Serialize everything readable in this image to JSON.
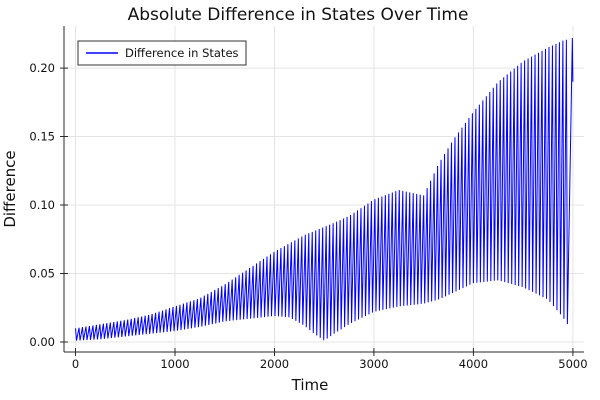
{
  "chart_data": {
    "type": "line",
    "title": "Absolute Difference in States Over Time",
    "xlabel": "Time",
    "ylabel": "Difference",
    "legend": {
      "position": "top-left",
      "entries": [
        {
          "label": "Difference in States",
          "color": "#0000ff"
        }
      ]
    },
    "x_ticks": [
      0,
      1000,
      2000,
      3000,
      4000,
      5000
    ],
    "x_tick_labels": [
      "0",
      "1000",
      "2000",
      "3000",
      "4000",
      "5000"
    ],
    "y_ticks": [
      0.0,
      0.05,
      0.1,
      0.15,
      0.2
    ],
    "y_tick_labels": [
      "0.00",
      "0.05",
      "0.10",
      "0.15",
      "0.20"
    ],
    "xlim": [
      -116,
      5112
    ],
    "ylim": [
      -0.0073,
      0.2307
    ],
    "grid": true,
    "colors": {
      "line": "#0000ff",
      "grid": "#e4e4e4",
      "axis": "#2a2a2a",
      "text": "#111111",
      "background": "#ffffff",
      "legend_border": "#333333",
      "legend_fill": "#ffffff"
    },
    "series": [
      {
        "name": "Difference in States",
        "description": "Rapidly oscillating absolute difference between two states; spikes oscillate between the lower and upper envelopes below",
        "t_range": [
          0,
          5000
        ],
        "oscillation_period": 35,
        "valley_offset": 10,
        "envelope": {
          "t": [
            0,
            250,
            500,
            750,
            1000,
            1250,
            1500,
            1750,
            2000,
            2150,
            2300,
            2400,
            2500,
            2600,
            2750,
            3000,
            3250,
            3500,
            3650,
            3800,
            4000,
            4250,
            4500,
            4750,
            4900,
            5000
          ],
          "lower": [
            0.001,
            0.002,
            0.004,
            0.006,
            0.008,
            0.011,
            0.015,
            0.017,
            0.019,
            0.018,
            0.012,
            0.006,
            0.001,
            0.006,
            0.013,
            0.022,
            0.026,
            0.028,
            0.031,
            0.036,
            0.043,
            0.045,
            0.04,
            0.031,
            0.018,
            0.007
          ],
          "upper": [
            0.01,
            0.013,
            0.016,
            0.02,
            0.026,
            0.032,
            0.042,
            0.054,
            0.066,
            0.072,
            0.078,
            0.081,
            0.084,
            0.087,
            0.092,
            0.104,
            0.111,
            0.107,
            0.13,
            0.148,
            0.168,
            0.19,
            0.205,
            0.215,
            0.22,
            0.222
          ]
        },
        "end_value": 0.19
      }
    ]
  }
}
